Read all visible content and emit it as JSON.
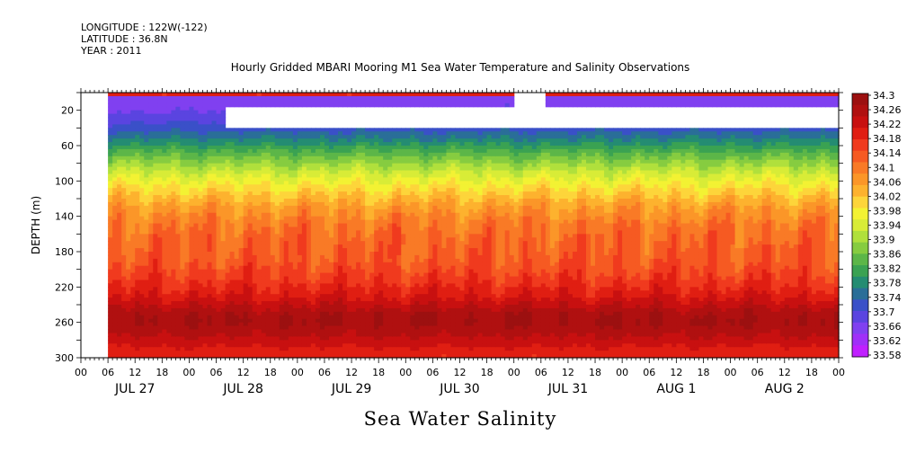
{
  "meta": {
    "longitude": "LONGITUDE : 122W(-122)",
    "latitude": "LATITUDE : 36.8N",
    "year": "YEAR : 2011"
  },
  "chart_data": {
    "type": "heatmap",
    "title": "Hourly Gridded MBARI Mooring M1 Sea Water Temperature and Salinity Observations",
    "xlabel": "Sea Water Salinity",
    "ylabel": "DEPTH (m)",
    "x_axis": {
      "range_hours": [
        0,
        168
      ],
      "hour_tick_labels": [
        "00",
        "06",
        "12",
        "18",
        "00",
        "06",
        "12",
        "18",
        "00",
        "06",
        "12",
        "18",
        "00",
        "06",
        "12",
        "18",
        "00",
        "06",
        "12",
        "18",
        "00",
        "06",
        "12",
        "18",
        "00",
        "06",
        "12",
        "18",
        "00"
      ],
      "day_labels": [
        "JUL 27",
        "JUL 28",
        "JUL 29",
        "JUL 30",
        "JUL 31",
        "AUG  1",
        "AUG  2"
      ]
    },
    "y_axis": {
      "range": [
        300,
        0
      ],
      "inverted": true,
      "tick_labels": [
        "20",
        "60",
        "100",
        "140",
        "180",
        "220",
        "260",
        "300"
      ]
    },
    "colorbar": {
      "labels": [
        "34.3",
        "34.26",
        "34.22",
        "34.18",
        "34.14",
        "34.1",
        "34.06",
        "34.02",
        "33.98",
        "33.94",
        "33.9",
        "33.86",
        "33.82",
        "33.78",
        "33.74",
        "33.7",
        "33.66",
        "33.62",
        "33.58"
      ],
      "colors": [
        "#9c1010",
        "#b01010",
        "#c81010",
        "#e01e12",
        "#f03a1e",
        "#f65a22",
        "#f97a26",
        "#fb9628",
        "#fdb22e",
        "#fdd53a",
        "#f3f233",
        "#d8ec37",
        "#b0e03c",
        "#86cc40",
        "#5cb648",
        "#3aa252",
        "#248c72",
        "#2a6e98",
        "#3a50c8",
        "#5a44e0",
        "#8040f0",
        "#a030f8",
        "#c020ff"
      ],
      "range": [
        33.58,
        34.3
      ]
    },
    "missing": [
      {
        "hours": [
          0,
          6
        ],
        "depth": [
          0,
          300
        ]
      },
      {
        "hours": [
          32,
          168
        ],
        "depth": [
          15,
          40
        ]
      },
      {
        "hours": [
          96,
          103
        ],
        "depth": [
          0,
          15
        ]
      }
    ],
    "depth_profile": [
      {
        "depth": 5,
        "salinity": 33.66
      },
      {
        "depth": 20,
        "salinity": 33.67
      },
      {
        "depth": 40,
        "salinity": 33.72
      },
      {
        "depth": 55,
        "salinity": 33.78
      },
      {
        "depth": 70,
        "salinity": 33.85
      },
      {
        "depth": 90,
        "salinity": 33.93
      },
      {
        "depth": 110,
        "salinity": 34.0
      },
      {
        "depth": 130,
        "salinity": 34.06
      },
      {
        "depth": 150,
        "salinity": 34.1
      },
      {
        "depth": 170,
        "salinity": 34.12
      },
      {
        "depth": 190,
        "salinity": 34.13
      },
      {
        "depth": 210,
        "salinity": 34.16
      },
      {
        "depth": 230,
        "salinity": 34.2
      },
      {
        "depth": 250,
        "salinity": 34.26
      },
      {
        "depth": 260,
        "salinity": 34.27
      },
      {
        "depth": 275,
        "salinity": 34.24
      },
      {
        "depth": 290,
        "salinity": 34.2
      },
      {
        "depth": 300,
        "salinity": 34.18
      }
    ]
  }
}
